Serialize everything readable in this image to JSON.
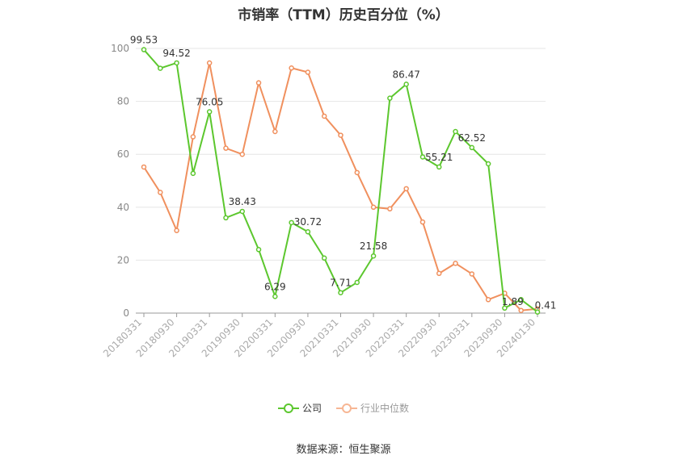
{
  "chart_data": {
    "type": "line",
    "title": "市销率（TTM）历史百分位（%）",
    "ylim": [
      0,
      100
    ],
    "yticks": [
      0,
      20,
      40,
      60,
      80,
      100
    ],
    "x_tick_labels": [
      "20180331",
      "20180930",
      "20190331",
      "20190930",
      "20200331",
      "20200930",
      "20210331",
      "20210930",
      "20220331",
      "20220930",
      "20230331",
      "20230930",
      "20240130"
    ],
    "grid": true,
    "legend_position": "bottom",
    "series": [
      {
        "name": "公司",
        "color": "#5cc72e",
        "values": [
          99.53,
          92.5,
          94.52,
          52.8,
          76.05,
          36.0,
          38.43,
          24.0,
          6.29,
          34.2,
          30.72,
          20.8,
          7.71,
          11.6,
          21.58,
          81.2,
          86.47,
          59.0,
          55.21,
          68.6,
          62.52,
          56.4,
          1.89,
          5.1,
          0.41
        ],
        "labels": {
          "0": "99.53",
          "2": "94.52",
          "4": "76.05",
          "6": "38.43",
          "8": "6.29",
          "10": "30.72",
          "12": "7.71",
          "14": "21.58",
          "16": "86.47",
          "18": "55.21",
          "20": "62.52",
          "22": "1.89",
          "24": "0.41"
        }
      },
      {
        "name": "行业中位数",
        "color": "#f0905e",
        "values": [
          55.2,
          45.6,
          31.2,
          66.6,
          94.5,
          62.3,
          60.0,
          87.0,
          68.6,
          92.6,
          91.0,
          74.4,
          67.2,
          53.1,
          40.0,
          39.4,
          47.0,
          34.4,
          15.0,
          18.8,
          14.8,
          5.1,
          7.5,
          1.0,
          1.6
        ]
      }
    ]
  },
  "legend": {
    "items": [
      "公司",
      "行业中位数"
    ]
  },
  "source_text": "数据来源：恒生聚源"
}
